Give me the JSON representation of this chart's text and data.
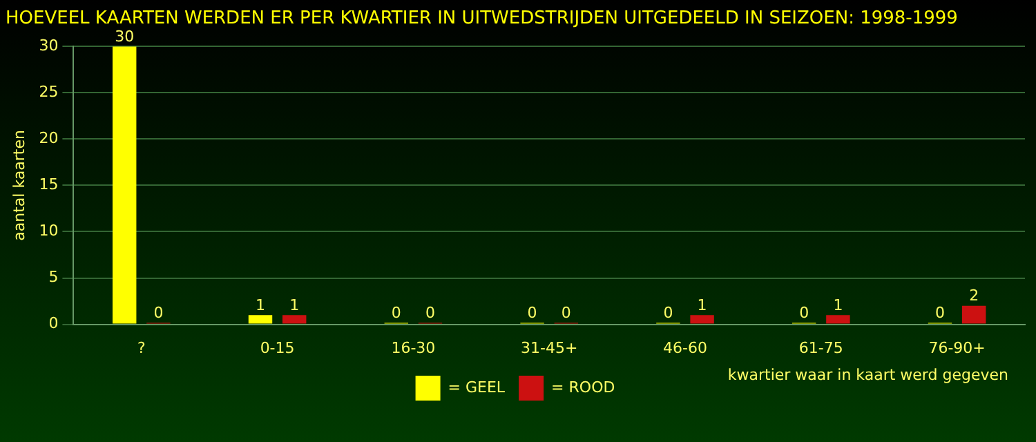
{
  "chart_data": {
    "type": "bar",
    "title": "HOEVEEL KAARTEN WERDEN ER PER KWARTIER IN UITWEDSTRIJDEN UITGEDEELD IN SEIZOEN: 1998-1999",
    "xlabel": "kwartier waar in kaart werd gegeven",
    "ylabel": "aantal kaarten",
    "categories": [
      "?",
      "0-15",
      "16-30",
      "31-45+",
      "46-60",
      "61-75",
      "76-90+"
    ],
    "series": [
      {
        "name": "= GEEL",
        "color": "#ffff00",
        "values": [
          30,
          1,
          0,
          0,
          0,
          0,
          0
        ]
      },
      {
        "name": "= ROOD",
        "color": "#cc1111",
        "values": [
          0,
          1,
          0,
          0,
          1,
          1,
          2
        ]
      }
    ],
    "ylim": [
      0,
      30
    ],
    "yticks": [
      0,
      5,
      10,
      15,
      20,
      25,
      30
    ],
    "grid": "y",
    "legend": "bottom",
    "data_labels": true
  }
}
